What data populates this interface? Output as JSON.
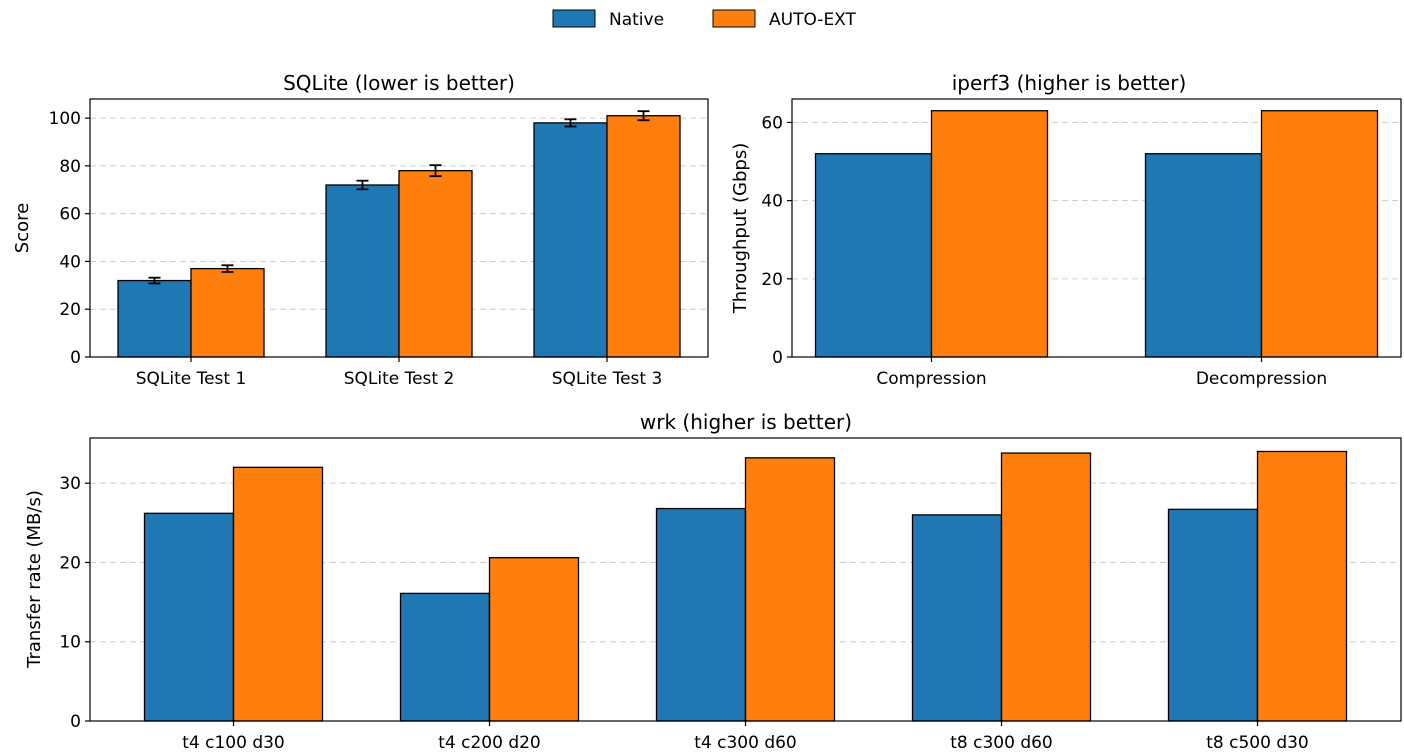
{
  "legend": {
    "placement": "top-center",
    "entries": [
      {
        "label": "Native",
        "color": "#1f77b4"
      },
      {
        "label": "AUTO-EXT",
        "color": "#ff7f0e"
      }
    ]
  },
  "colors": {
    "native": "#1f77b4",
    "auto_ext": "#ff7f0e",
    "grid": "#cccccc",
    "edge": "#000000"
  },
  "chart_data": [
    {
      "type": "bar",
      "title": "SQLite (lower is better)",
      "xlabel": "",
      "ylabel": "Score",
      "categories": [
        "SQLite Test 1",
        "SQLite Test 2",
        "SQLite Test 3"
      ],
      "series": [
        {
          "name": "Native",
          "values": [
            32,
            72,
            98
          ],
          "errors": [
            1.2,
            1.8,
            1.5
          ]
        },
        {
          "name": "AUTO-EXT",
          "values": [
            37,
            78,
            101
          ],
          "errors": [
            1.4,
            2.3,
            1.9
          ]
        }
      ],
      "ylim": [
        0,
        108
      ],
      "yticks": [
        0,
        20,
        40,
        60,
        80,
        100
      ],
      "grid": "y-dashed"
    },
    {
      "type": "bar",
      "title": "iperf3 (higher is better)",
      "xlabel": "",
      "ylabel": "Throughput (Gbps)",
      "categories": [
        "Compression",
        "Decompression"
      ],
      "series": [
        {
          "name": "Native",
          "values": [
            52,
            52
          ]
        },
        {
          "name": "AUTO-EXT",
          "values": [
            63,
            63
          ]
        }
      ],
      "ylim": [
        0,
        66
      ],
      "yticks": [
        0,
        20,
        40,
        60
      ],
      "grid": "y-dashed"
    },
    {
      "type": "bar",
      "title": "wrk (higher is better)",
      "xlabel": "",
      "ylabel": "Transfer rate (MB/s)",
      "categories": [
        "t4 c100 d30",
        "t4 c200 d20",
        "t4 c300 d60",
        "t8 c300 d60",
        "t8 c500 d30"
      ],
      "series": [
        {
          "name": "Native",
          "values": [
            26.2,
            16.1,
            26.8,
            26.0,
            26.7
          ]
        },
        {
          "name": "AUTO-EXT",
          "values": [
            32.0,
            20.6,
            33.2,
            33.8,
            34.0
          ]
        }
      ],
      "ylim": [
        0,
        35.7
      ],
      "yticks": [
        0,
        10,
        20,
        30
      ],
      "grid": "y-dashed"
    }
  ]
}
